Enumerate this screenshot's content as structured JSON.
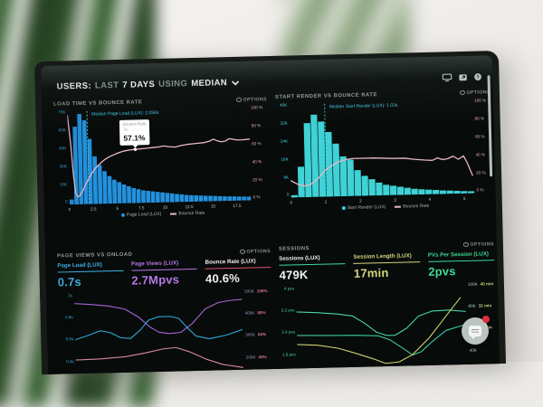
{
  "header": {
    "users_label": "USERS:",
    "range_prefix": "LAST",
    "range": "7 DAYS",
    "using": "USING",
    "aggregation": "MEDIAN"
  },
  "header_icons": [
    {
      "name": "display-icon"
    },
    {
      "name": "share-icon"
    },
    {
      "name": "help-icon"
    }
  ],
  "panels": [
    {
      "title": "LOAD TIME VS BOUNCE RATE",
      "options_label": "OPTIONS"
    },
    {
      "title": "START RENDER VS BOUNCE RATE",
      "options_label": "OPTIONS"
    },
    {
      "title": "PAGE VIEWS VS ONLOAD",
      "options_label": "OPTIONS"
    },
    {
      "title": "SESSIONS",
      "options_label": "OPTIONS"
    }
  ],
  "colors": {
    "page_load_blue": "#2391dd",
    "start_render_teal": "#3fd2d6",
    "bounce_pink": "#eab7c6",
    "median_cyan": "#41c4e4",
    "page_views_purple": "#a864d8",
    "bounce_red_accent": "#e0506e",
    "sessions_green": "#3fd898",
    "session_length_yellow": "#d5d87c"
  },
  "chart_data": [
    {
      "type": "bar",
      "title": "LOAD TIME VS BOUNCE RATE",
      "xlim": [
        0,
        19
      ],
      "x_ticks": [
        "0",
        "2.5",
        "5",
        "7.5",
        "10",
        "12.5",
        "15",
        "17.5"
      ],
      "left_axis": [
        "75K",
        "60K",
        "45K",
        "30K",
        "15K",
        "0"
      ],
      "right_axis": [
        "100 %",
        "80 %",
        "60 %",
        "40 %",
        "20 %",
        "0 %"
      ],
      "bar_series": {
        "name": "Page Load (LUX)",
        "color": "#2391dd",
        "ymax_k": 75,
        "bin_width_s": 0.5,
        "values_k": [
          4,
          62,
          72,
          67,
          52,
          38,
          31,
          26,
          22,
          19,
          17,
          15,
          13.5,
          12,
          11,
          10,
          9.5,
          9,
          8.5,
          8,
          7.5,
          7,
          6.5,
          6,
          5.5,
          5.2,
          5,
          4.8,
          4.5,
          4.3,
          4.1,
          3.9,
          3.7,
          3.5,
          3.4,
          3.2,
          3.1,
          3
        ]
      },
      "line_series": {
        "name": "Bounce Rate",
        "color": "#eab7c6",
        "ymin": 0,
        "ymax": 100,
        "width": 1.3,
        "points": [
          [
            0,
            95
          ],
          [
            0.3,
            62
          ],
          [
            0.5,
            30
          ],
          [
            0.7,
            12
          ],
          [
            0.9,
            8
          ],
          [
            1.1,
            9
          ],
          [
            1.4,
            14
          ],
          [
            1.8,
            22
          ],
          [
            2.3,
            31
          ],
          [
            2.8,
            38
          ],
          [
            3.3,
            43
          ],
          [
            3.8,
            47
          ],
          [
            4.3,
            50
          ],
          [
            4.8,
            52
          ],
          [
            5.3,
            54
          ],
          [
            5.8,
            55.5
          ],
          [
            6.4,
            56.5
          ],
          [
            7,
            57.1
          ],
          [
            7.6,
            57.5
          ],
          [
            8.2,
            58
          ],
          [
            8.8,
            58.5
          ],
          [
            9.4,
            59
          ],
          [
            10,
            60
          ],
          [
            10.6,
            59
          ],
          [
            11.2,
            58.5
          ],
          [
            11.8,
            60
          ],
          [
            12.4,
            61
          ],
          [
            13,
            61.5
          ],
          [
            13.6,
            62
          ],
          [
            14.2,
            62.5
          ],
          [
            14.8,
            64
          ],
          [
            15.2,
            66
          ],
          [
            15.6,
            64
          ],
          [
            16,
            63
          ],
          [
            16.4,
            63.5
          ],
          [
            16.8,
            66
          ],
          [
            17.2,
            65.5
          ],
          [
            17.6,
            64.5
          ],
          [
            18.2,
            64.5
          ],
          [
            18.8,
            65
          ],
          [
            19,
            65
          ]
        ]
      },
      "median": {
        "x": 2.056,
        "label": "Median Page Load (LUX): 2.056s"
      },
      "tooltip": {
        "series": "Bounce Rate",
        "x_label": "7s",
        "value": "57.1%",
        "x": 7,
        "y_pct": 57.1
      },
      "legend": [
        {
          "label": "Page Load (LUX)",
          "marker": "dot",
          "color": "#2391dd"
        },
        {
          "label": "Bounce Rate",
          "marker": "line",
          "color": "#eab7c6"
        }
      ]
    },
    {
      "type": "bar",
      "title": "START RENDER VS BOUNCE RATE",
      "xlim": [
        0,
        5.3
      ],
      "x_ticks": [
        "0",
        "1",
        "2",
        "3",
        "4",
        "5"
      ],
      "left_axis": [
        "40K",
        "32K",
        "24K",
        "16K",
        "8K",
        "0"
      ],
      "right_axis": [
        "100 %",
        "80 %",
        "60 %",
        "40 %",
        "20 %",
        "0 %"
      ],
      "bar_series": {
        "name": "Start Render (LUX)",
        "color": "#3fd2d6",
        "ymax_k": 40,
        "bin_width_s": 0.2,
        "values_k": [
          1,
          13,
          31.5,
          35,
          32,
          27.5,
          22.5,
          17,
          15.5,
          11,
          8.5,
          7,
          5.5,
          4.5,
          4,
          3.5,
          3,
          2.5,
          2.2,
          2,
          1.8,
          1.5,
          1.4,
          1.2,
          1,
          0.9
        ]
      },
      "line_series": {
        "name": "Bounce Rate",
        "color": "#eab7c6",
        "ymin": 0,
        "ymax": 100,
        "width": 1.3,
        "points": [
          [
            0,
            18
          ],
          [
            0.2,
            14
          ],
          [
            0.4,
            12
          ],
          [
            0.6,
            14
          ],
          [
            0.8,
            20
          ],
          [
            1,
            28
          ],
          [
            1.2,
            33
          ],
          [
            1.4,
            37
          ],
          [
            1.6,
            39
          ],
          [
            1.8,
            40
          ],
          [
            2.1,
            40
          ],
          [
            2.4,
            40
          ],
          [
            2.7,
            39.5
          ],
          [
            3,
            39
          ],
          [
            3.3,
            39
          ],
          [
            3.6,
            37.5
          ],
          [
            3.9,
            36.5
          ],
          [
            4.1,
            36
          ],
          [
            4.25,
            38.5
          ],
          [
            4.4,
            36.5
          ],
          [
            4.55,
            37.5
          ],
          [
            4.7,
            40
          ],
          [
            4.85,
            36.5
          ],
          [
            5,
            40
          ],
          [
            5.1,
            33
          ],
          [
            5.25,
            19
          ]
        ]
      },
      "median": {
        "x": 1.03,
        "label": "Median Start Render (LUX): 1.03s"
      },
      "legend": [
        {
          "label": "Start Render (LUX)",
          "marker": "dot",
          "color": "#3fd2d6"
        },
        {
          "label": "Bounce Rate",
          "marker": "line",
          "color": "#eab7c6"
        }
      ]
    },
    {
      "type": "line",
      "title": "PAGE VIEWS VS ONLOAD",
      "metrics": [
        {
          "label": "Page Load (LUX)",
          "value": "0.7s",
          "color": "#41b6e8",
          "accent": "#41b6e8"
        },
        {
          "label": "Page Views (LUX)",
          "value": "2.7Mpvs",
          "color": "#b678e6",
          "accent": "#b678e6"
        },
        {
          "label": "Bounce Rate (LUX)",
          "value": "40.6%",
          "color": "#f5eef0",
          "accent": "#e0506e"
        }
      ],
      "left_axis": [
        "1s",
        "0.8s",
        "0.6s",
        "0.4s"
      ],
      "right_axis_pairs": [
        [
          "500K",
          "100%"
        ],
        [
          "400K",
          "80%"
        ],
        [
          "300K",
          "60%"
        ],
        [
          "200K",
          "40%"
        ]
      ],
      "series": [
        {
          "name": "Page Views",
          "unit": "K",
          "color": "#a864d8",
          "ymin": 168,
          "ymax": 533,
          "points": [
            [
              0,
              482
            ],
            [
              0.1,
              476
            ],
            [
              0.2,
              468
            ],
            [
              0.3,
              452
            ],
            [
              0.38,
              415
            ],
            [
              0.45,
              368
            ],
            [
              0.5,
              345
            ],
            [
              0.56,
              338
            ],
            [
              0.63,
              342
            ],
            [
              0.7,
              380
            ],
            [
              0.78,
              445
            ],
            [
              0.86,
              472
            ],
            [
              0.93,
              480
            ],
            [
              1,
              483
            ]
          ]
        },
        {
          "name": "Page Load",
          "unit": "s",
          "color": "#2fa8dd",
          "ymin": 0.3,
          "ymax": 1.07,
          "points": [
            [
              0,
              0.62
            ],
            [
              0.08,
              0.66
            ],
            [
              0.15,
              0.7
            ],
            [
              0.21,
              0.68
            ],
            [
              0.27,
              0.63
            ],
            [
              0.33,
              0.62
            ],
            [
              0.39,
              0.7
            ],
            [
              0.44,
              0.79
            ],
            [
              0.5,
              0.82
            ],
            [
              0.57,
              0.82
            ],
            [
              0.62,
              0.8
            ],
            [
              0.67,
              0.71
            ],
            [
              0.72,
              0.63
            ],
            [
              0.8,
              0.6
            ],
            [
              0.9,
              0.63
            ],
            [
              1,
              0.68
            ]
          ]
        },
        {
          "name": "Bounce Rate",
          "unit": "%",
          "color": "#d88aa0",
          "ymin": 34,
          "ymax": 106,
          "points": [
            [
              0,
              46
            ],
            [
              0.15,
              46.5
            ],
            [
              0.3,
              48
            ],
            [
              0.42,
              51
            ],
            [
              0.52,
              54
            ],
            [
              0.6,
              55
            ],
            [
              0.68,
              51
            ],
            [
              0.78,
              44
            ],
            [
              0.88,
              39
            ],
            [
              1,
              36
            ]
          ]
        }
      ]
    },
    {
      "type": "line",
      "title": "SESSIONS",
      "metrics": [
        {
          "label": "Sessions (LUX)",
          "value": "479K",
          "color": "#f2f4f2",
          "accent": "#3fd898"
        },
        {
          "label": "Session Length (LUX)",
          "value": "17min",
          "color": "#d5d87c",
          "accent": "#d5d87c"
        },
        {
          "label": "PVs Per Session (LUX)",
          "value": "2pvs",
          "color": "#3fd898",
          "accent": "#3fd898"
        }
      ],
      "left_axis": [
        "4 pvs",
        "3.2 pvs",
        "2.4 pvs",
        "1.6 pvs"
      ],
      "right_axis_pairs": [
        [
          "100K",
          "40 min"
        ],
        [
          "80K",
          "32 min"
        ],
        [
          "60K",
          "24 min"
        ],
        [
          "40K",
          ""
        ]
      ],
      "series": [
        {
          "name": "PVs Per Session",
          "unit": "pvs",
          "color": "#46d6a8",
          "ymin": 0.8,
          "ymax": 4.3,
          "points": [
            [
              0,
              3.15
            ],
            [
              0.12,
              3.1
            ],
            [
              0.24,
              3.02
            ],
            [
              0.33,
              2.92
            ],
            [
              0.4,
              2.6
            ],
            [
              0.47,
              2.2
            ],
            [
              0.53,
              2.05
            ],
            [
              0.58,
              2.05
            ],
            [
              0.65,
              2.35
            ],
            [
              0.72,
              2.85
            ],
            [
              0.8,
              3.05
            ],
            [
              0.9,
              3.08
            ],
            [
              1,
              3
            ]
          ]
        },
        {
          "name": "Sessions",
          "unit": "K",
          "color": "#3bc9a0",
          "ymin": 0,
          "ymax": 110,
          "points": [
            [
              0,
              42
            ],
            [
              0.2,
              41
            ],
            [
              0.35,
              40.5
            ],
            [
              0.48,
              39
            ],
            [
              0.55,
              33
            ],
            [
              0.62,
              22
            ],
            [
              0.68,
              12
            ],
            [
              0.73,
              16
            ],
            [
              0.8,
              30
            ],
            [
              0.88,
              44
            ],
            [
              1,
              52
            ]
          ]
        },
        {
          "name": "Session Length",
          "unit": "min",
          "color": "#cfd26b",
          "ymin": 8,
          "ymax": 43,
          "points": [
            [
              0,
              17.5
            ],
            [
              0.12,
              17
            ],
            [
              0.24,
              15.5
            ],
            [
              0.35,
              13
            ],
            [
              0.45,
              10.5
            ],
            [
              0.52,
              8.5
            ],
            [
              0.6,
              9
            ],
            [
              0.68,
              12
            ],
            [
              0.78,
              19
            ],
            [
              0.88,
              28
            ],
            [
              0.97,
              36
            ]
          ]
        }
      ]
    }
  ]
}
